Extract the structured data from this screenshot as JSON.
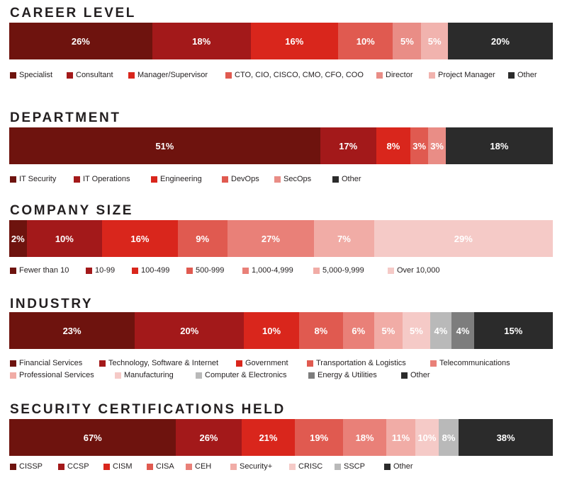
{
  "chart_data": [
    {
      "type": "bar",
      "orientation": "horizontal-stacked",
      "title": "CAREER LEVEL",
      "unit": "%",
      "series": [
        {
          "name": "Specialist",
          "value": 26,
          "label": "26%",
          "color": "#6e130e"
        },
        {
          "name": "Consultant",
          "value": 18,
          "label": "18%",
          "color": "#a3191a"
        },
        {
          "name": "Manager/Supervisor",
          "value": 16,
          "label": "16%",
          "color": "#d9261c"
        },
        {
          "name": "CTO, CIO, CISCO, CMO, CFO, COO",
          "value": 10,
          "label": "10%",
          "color": "#e05a50"
        },
        {
          "name": "Director",
          "value": 5,
          "label": "5%",
          "color": "#e98d86"
        },
        {
          "name": "Project Manager",
          "value": 5,
          "label": "5%",
          "color": "#f1b3ae"
        },
        {
          "name": "Other",
          "value": 20,
          "label": "20%",
          "color": "#2b2b2b"
        }
      ]
    },
    {
      "type": "bar",
      "orientation": "horizontal-stacked",
      "title": "DEPARTMENT",
      "unit": "%",
      "series": [
        {
          "name": "IT Security",
          "value": 51,
          "label": "51%",
          "color": "#6e130e"
        },
        {
          "name": "IT Operations",
          "value": 17,
          "label": "17%",
          "color": "#a3191a"
        },
        {
          "name": "Engineering",
          "value": 8,
          "label": "8%",
          "color": "#d9261c"
        },
        {
          "name": "DevOps",
          "value": 3,
          "label": "3%",
          "color": "#e05a50"
        },
        {
          "name": "SecOps",
          "value": 3,
          "label": "3%",
          "color": "#e98d86"
        },
        {
          "name": "Other",
          "value": 18,
          "label": "18%",
          "color": "#2b2b2b"
        }
      ]
    },
    {
      "type": "bar",
      "orientation": "horizontal-stacked",
      "title": "COMPANY SIZE",
      "unit": "%",
      "series": [
        {
          "name": "Fewer than 10",
          "value": 2,
          "label": "2%",
          "color": "#6e130e"
        },
        {
          "name": "10-99",
          "value": 10,
          "label": "10%",
          "color": "#a3191a"
        },
        {
          "name": "100-499",
          "value": 16,
          "label": "16%",
          "color": "#d9261c"
        },
        {
          "name": "500-999",
          "value": 9,
          "label": "9%",
          "color": "#e05a50"
        },
        {
          "name": "1,000-4,999",
          "value": 27,
          "label": "27%",
          "color": "#e98078"
        },
        {
          "name": "5,000-9,999",
          "value": 7,
          "label": "7%",
          "color": "#f1aca6"
        },
        {
          "name": "Over 10,000",
          "value": 29,
          "label": "29%",
          "color": "#f5cac7"
        }
      ]
    },
    {
      "type": "bar",
      "orientation": "horizontal-stacked",
      "title": "INDUSTRY",
      "unit": "%",
      "series": [
        {
          "name": "Financial Services",
          "value": 23,
          "label": "23%",
          "color": "#6e130e"
        },
        {
          "name": "Technology, Software & Internet",
          "value": 20,
          "label": "20%",
          "color": "#a3191a"
        },
        {
          "name": "Government",
          "value": 10,
          "label": "10%",
          "color": "#d9261c"
        },
        {
          "name": "Transportation & Logistics",
          "value": 8,
          "label": "8%",
          "color": "#e05a50"
        },
        {
          "name": "Telecommunications",
          "value": 6,
          "label": "6%",
          "color": "#e98078"
        },
        {
          "name": "Professional Services",
          "value": 5,
          "label": "5%",
          "color": "#f1aca6"
        },
        {
          "name": "Manufacturing",
          "value": 5,
          "label": "5%",
          "color": "#f5cac7"
        },
        {
          "name": "Computer & Electronics",
          "value": 4,
          "label": "4%",
          "color": "#b9b9b9"
        },
        {
          "name": "Energy & Utilities",
          "value": 4,
          "label": "4%",
          "color": "#7d7d7d"
        },
        {
          "name": "Other",
          "value": 15,
          "label": "15%",
          "color": "#2b2b2b"
        }
      ]
    },
    {
      "type": "bar",
      "orientation": "horizontal-stacked",
      "title": "SECURITY CERTIFICATIONS HELD",
      "unit": "%",
      "series": [
        {
          "name": "CISSP",
          "value": 67,
          "label": "67%",
          "color": "#6e130e"
        },
        {
          "name": "CCSP",
          "value": 26,
          "label": "26%",
          "color": "#a3191a"
        },
        {
          "name": "CISM",
          "value": 21,
          "label": "21%",
          "color": "#d9261c"
        },
        {
          "name": "CISA",
          "value": 19,
          "label": "19%",
          "color": "#e05a50"
        },
        {
          "name": "CEH",
          "value": 18,
          "label": "18%",
          "color": "#e98078"
        },
        {
          "name": "Security+",
          "value": 11,
          "label": "11%",
          "color": "#f1aca6"
        },
        {
          "name": "CRISC",
          "value": 10,
          "label": "10%",
          "color": "#f5cac7"
        },
        {
          "name": "SSCP",
          "value": 8,
          "label": "8%",
          "color": "#b9b9b9"
        },
        {
          "name": "Other",
          "value": 38,
          "label": "38%",
          "color": "#2b2b2b"
        }
      ]
    }
  ]
}
